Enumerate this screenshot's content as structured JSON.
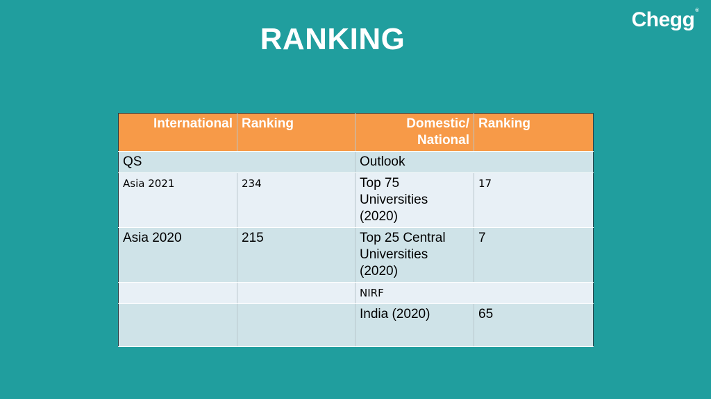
{
  "logo": {
    "text": "Chegg",
    "mark": "®"
  },
  "title": "RANKING",
  "table": {
    "headers": [
      "International",
      "Ranking",
      "Domestic/ National",
      "Ranking"
    ],
    "rows": [
      {
        "c1": "QS",
        "c2": "",
        "c3": "Outlook",
        "c4": ""
      },
      {
        "c1": "Asia 2021",
        "c2": "234",
        "c3": "Top 75 Universities (2020)",
        "c4": "17"
      },
      {
        "c1": "Asia 2020",
        "c2": "215",
        "c3": "Top 25 Central Universities (2020)",
        "c4": "7"
      },
      {
        "c1": "",
        "c2": "",
        "c3": "NIRF",
        "c4": ""
      },
      {
        "c1": "",
        "c2": "",
        "c3": "India (2020)",
        "c4": "65"
      }
    ]
  },
  "colors": {
    "background": "#209e9e",
    "header": "#f79a48",
    "row_dark": "#cfe3e8",
    "row_light": "#e8f0f6"
  }
}
